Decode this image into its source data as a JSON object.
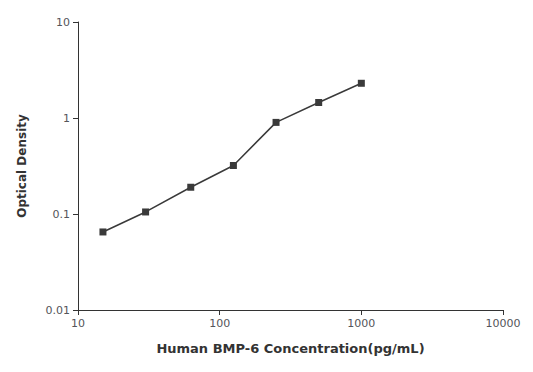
{
  "chart_data": {
    "type": "line",
    "x": [
      15,
      30,
      62.5,
      125,
      250,
      500,
      1000
    ],
    "values": [
      0.065,
      0.105,
      0.19,
      0.32,
      0.9,
      1.45,
      2.3
    ],
    "xlabel": "Human BMP-6 Concentration(pg/mL)",
    "ylabel": "Optical Density",
    "xlim": [
      10,
      10000
    ],
    "ylim": [
      0.01,
      10
    ],
    "xticks": [
      10,
      100,
      1000,
      10000
    ],
    "yticks": [
      0.01,
      0.1,
      1,
      10
    ],
    "log": true,
    "grid": false,
    "color": "#3a3a3a",
    "marker": "square",
    "line_style": "solid"
  }
}
